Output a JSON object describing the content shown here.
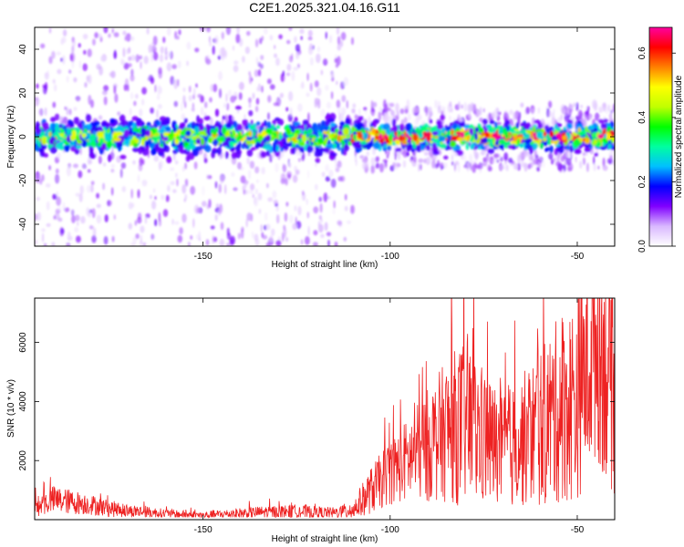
{
  "title": "C2E1.2025.321.04.16.G11",
  "chart_data": [
    {
      "type": "heatmap",
      "title": "",
      "xlabel": "Height of straight line (km)",
      "ylabel": "Frequency (Hz)",
      "xlim": [
        -195,
        -40
      ],
      "ylim": [
        -50,
        50
      ],
      "xticks": [
        -150,
        -100,
        -50
      ],
      "yticks": [
        -40,
        -20,
        0,
        20,
        40
      ],
      "description_series": [
        {
          "x_range": [
            -195,
            -110
          ],
          "band_center_hz": 0,
          "band_halfwidth_hz": 5,
          "scatter_extent_hz": 50,
          "max_amplitude": 0.45
        },
        {
          "x_range": [
            -110,
            -40
          ],
          "band_center_hz": 0,
          "band_halfwidth_hz": 4,
          "scatter_extent_hz": 15,
          "max_amplitude": 0.65
        }
      ],
      "colorbar": {
        "label": "Normalized spectral amplitude",
        "range": [
          0.0,
          0.68
        ],
        "ticks": [
          0.0,
          0.2,
          0.4,
          0.6
        ],
        "tick_labels": [
          "0.0",
          "0.2",
          "0.4",
          "0.6"
        ],
        "colors": [
          "#ffffff",
          "#d9b8ff",
          "#8000ff",
          "#0000ff",
          "#00c0ff",
          "#00ffa0",
          "#00ff00",
          "#c0ff00",
          "#ffff00",
          "#ff8000",
          "#ff0000",
          "#ff00a0"
        ]
      }
    },
    {
      "type": "line",
      "title": "",
      "xlabel": "Height of straight line (km)",
      "ylabel": "SNR (10 * v/v)",
      "xlim": [
        -195,
        -40
      ],
      "ylim": [
        0,
        7500
      ],
      "xticks": [
        -150,
        -100,
        -50
      ],
      "yticks": [
        2000,
        4000,
        6000
      ],
      "series": [
        {
          "color": "#ee2222",
          "x": [
            -195,
            -190,
            -185,
            -180,
            -175,
            -170,
            -165,
            -160,
            -155,
            -150,
            -145,
            -140,
            -135,
            -130,
            -125,
            -120,
            -115,
            -110,
            -105,
            -100,
            -95,
            -90,
            -85,
            -80,
            -75,
            -70,
            -65,
            -60,
            -55,
            -50,
            -45,
            -40
          ],
          "values": [
            500,
            800,
            700,
            600,
            450,
            350,
            300,
            250,
            200,
            180,
            220,
            260,
            300,
            320,
            340,
            300,
            280,
            400,
            1200,
            1900,
            2400,
            3000,
            3600,
            4000,
            3400,
            2800,
            3200,
            3800,
            4500,
            5000,
            7200,
            5500
          ],
          "noise_amplitude": [
            200,
            300,
            260,
            220,
            180,
            140,
            120,
            100,
            90,
            80,
            100,
            120,
            130,
            140,
            150,
            130,
            120,
            200,
            500,
            700,
            900,
            1200,
            1500,
            1800,
            1500,
            1200,
            1400,
            1700,
            2000,
            2200,
            2600,
            2400
          ]
        }
      ]
    }
  ]
}
